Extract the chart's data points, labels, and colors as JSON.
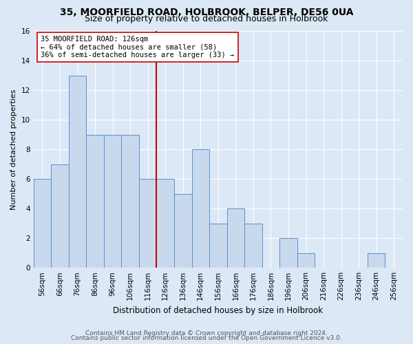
{
  "title1": "35, MOORFIELD ROAD, HOLBROOK, BELPER, DE56 0UA",
  "title2": "Size of property relative to detached houses in Holbrook",
  "xlabel": "Distribution of detached houses by size in Holbrook",
  "ylabel": "Number of detached properties",
  "bin_labels": [
    "56sqm",
    "66sqm",
    "76sqm",
    "86sqm",
    "96sqm",
    "106sqm",
    "116sqm",
    "126sqm",
    "136sqm",
    "146sqm",
    "156sqm",
    "166sqm",
    "176sqm",
    "186sqm",
    "196sqm",
    "206sqm",
    "216sqm",
    "226sqm",
    "236sqm",
    "246sqm",
    "256sqm"
  ],
  "values": [
    6,
    7,
    13,
    9,
    9,
    9,
    6,
    6,
    5,
    8,
    3,
    4,
    3,
    0,
    2,
    1,
    0,
    0,
    0,
    1,
    0
  ],
  "bar_color": "#c8d9ee",
  "bar_edge_color": "#5b8fcc",
  "property_bin_index": 7,
  "vline_color": "#cc0000",
  "annotation_text": "35 MOORFIELD ROAD: 126sqm\n← 64% of detached houses are smaller (58)\n36% of semi-detached houses are larger (33) →",
  "annotation_box_color": "#ffffff",
  "annotation_box_edge_color": "#cc0000",
  "ylim": [
    0,
    16
  ],
  "yticks": [
    0,
    2,
    4,
    6,
    8,
    10,
    12,
    14,
    16
  ],
  "footer1": "Contains HM Land Registry data © Crown copyright and database right 2024.",
  "footer2": "Contains public sector information licensed under the Open Government Licence v3.0.",
  "background_color": "#dce8f5",
  "grid_color": "#ffffff",
  "title1_fontsize": 10,
  "title2_fontsize": 9,
  "xlabel_fontsize": 8.5,
  "ylabel_fontsize": 8,
  "annot_fontsize": 7.5,
  "tick_fontsize": 7.5,
  "footer_fontsize": 6.5
}
